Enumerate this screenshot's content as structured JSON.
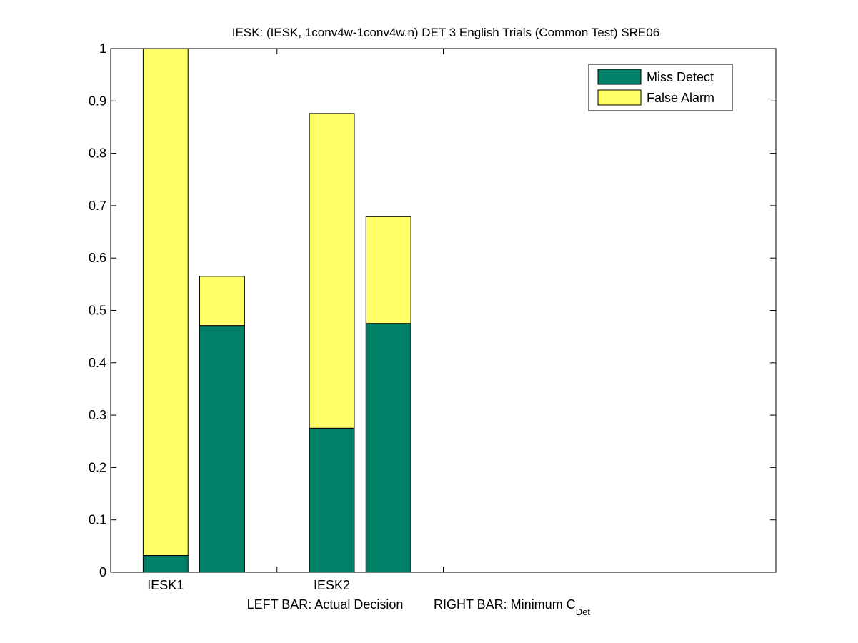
{
  "chart_data": {
    "type": "bar",
    "title": "IESK: (IESK, 1conv4w-1conv4w.n) DET 3 English Trials (Common Test) SRE06",
    "xlabel_left": "LEFT BAR: Actual Decision",
    "xlabel_right_prefix": "RIGHT BAR: Minimum C",
    "xlabel_right_subscript": "Det",
    "ylabel": "",
    "ylim": [
      0,
      1
    ],
    "xlim": [
      0,
      4
    ],
    "yticks": [
      {
        "value": 0,
        "label": "0"
      },
      {
        "value": 0.1,
        "label": "0.1"
      },
      {
        "value": 0.2,
        "label": "0.2"
      },
      {
        "value": 0.3,
        "label": "0.3"
      },
      {
        "value": 0.4,
        "label": "0.4"
      },
      {
        "value": 0.5,
        "label": "0.5"
      },
      {
        "value": 0.6,
        "label": "0.6"
      },
      {
        "value": 0.7,
        "label": "0.7"
      },
      {
        "value": 0.8,
        "label": "0.8"
      },
      {
        "value": 0.9,
        "label": "0.9"
      },
      {
        "value": 1,
        "label": "1"
      }
    ],
    "xticks": [
      1,
      2
    ],
    "categories": [
      {
        "label": "IESK1",
        "x": 0.33
      },
      {
        "label": "IESK2",
        "x": 1.33
      }
    ],
    "stacked": true,
    "legend_position": "top-right",
    "series": [
      {
        "name": "Miss Detect",
        "color": "#008066"
      },
      {
        "name": "False Alarm",
        "color": "#ffff66"
      }
    ],
    "bars": [
      {
        "category": "IESK1",
        "side": "left",
        "x": 0.33,
        "miss_detect": 0.032,
        "total": 1.0
      },
      {
        "category": "IESK1",
        "side": "right",
        "x": 0.67,
        "miss_detect": 0.471,
        "total": 0.565
      },
      {
        "category": "IESK2",
        "side": "left",
        "x": 1.33,
        "miss_detect": 0.275,
        "total": 0.876
      },
      {
        "category": "IESK2",
        "side": "right",
        "x": 1.67,
        "miss_detect": 0.475,
        "total": 0.679
      }
    ],
    "bar_width": 0.27,
    "grid": false
  }
}
